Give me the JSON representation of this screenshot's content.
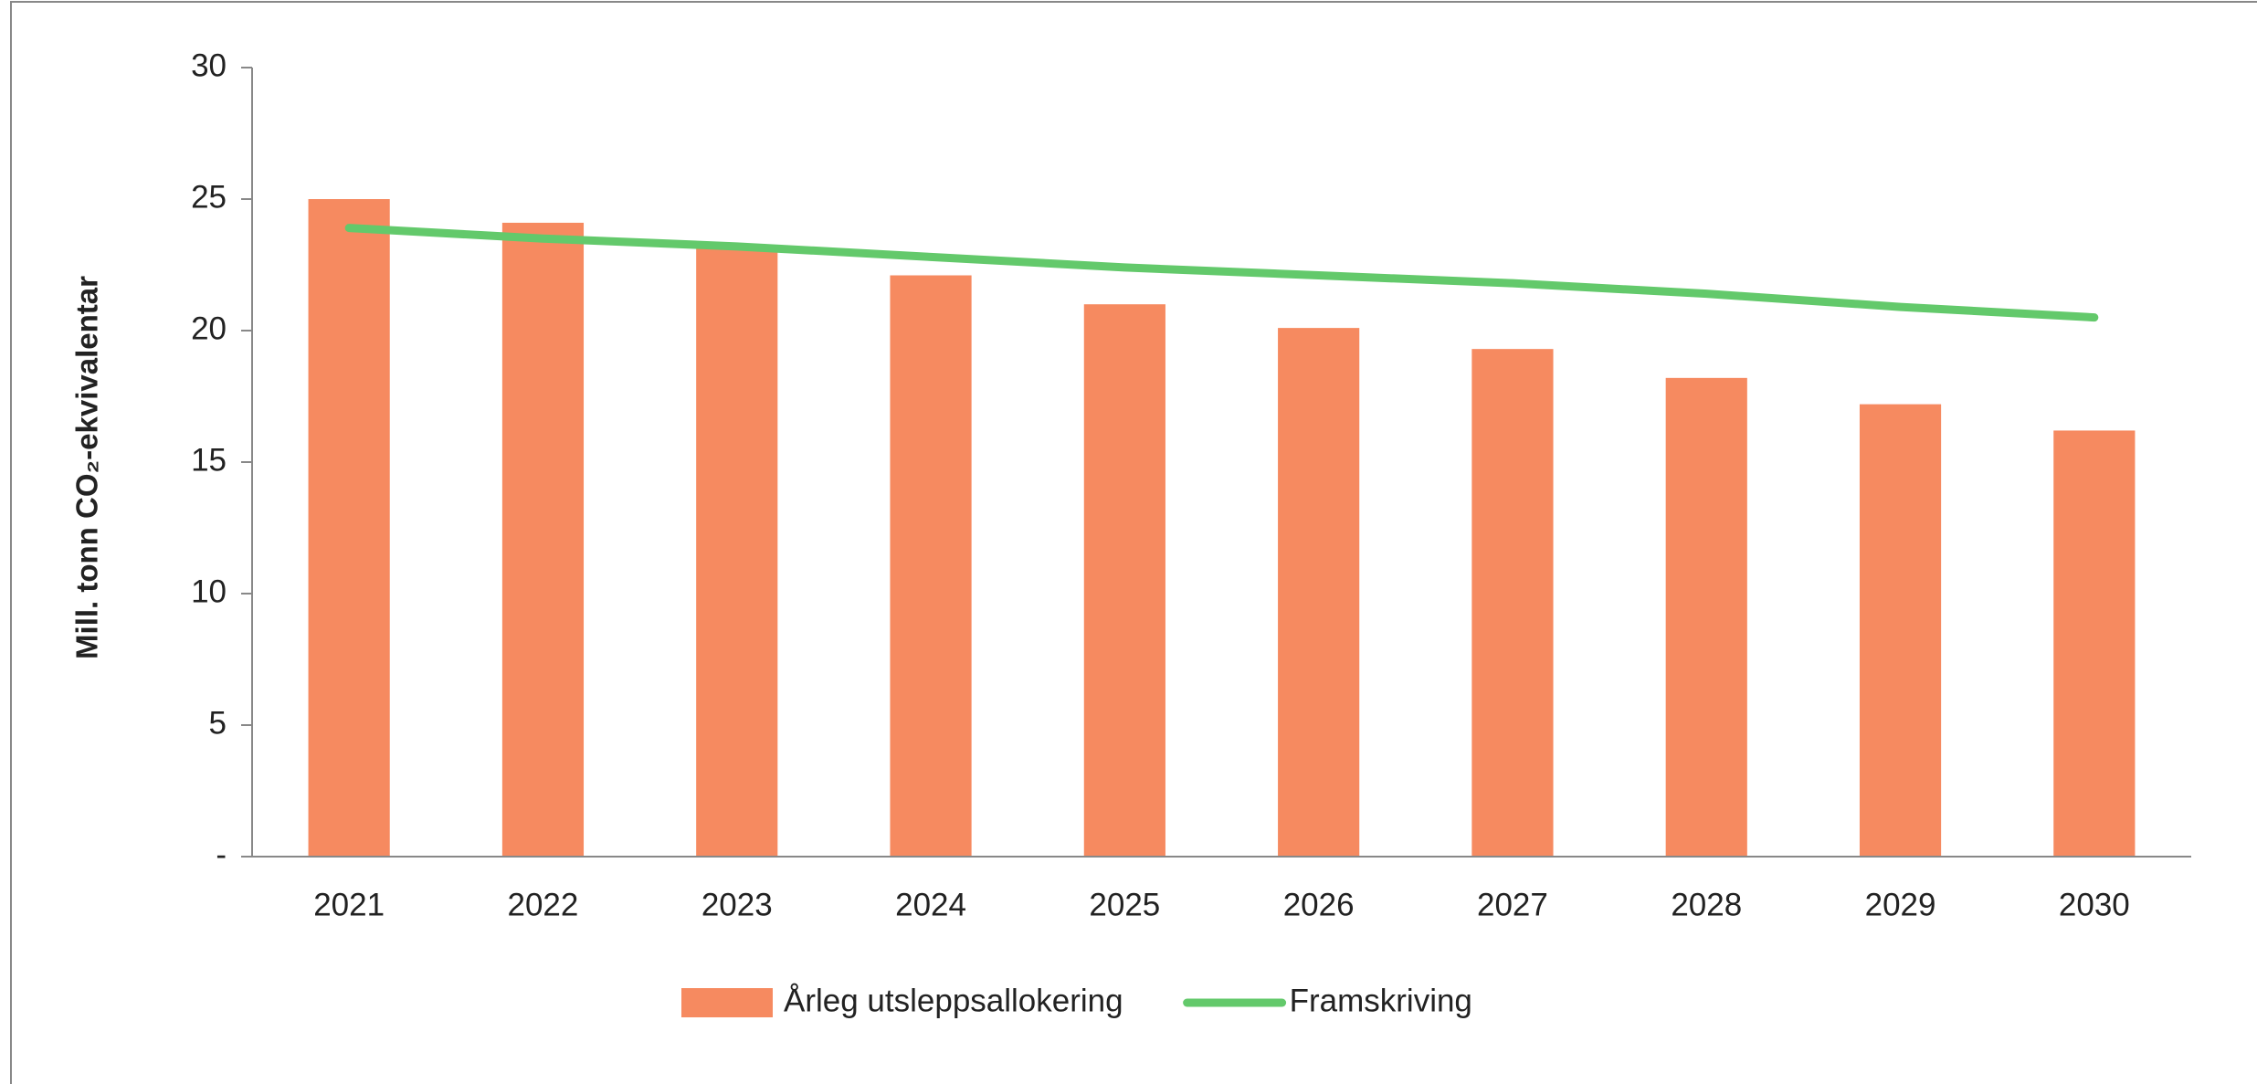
{
  "chart_data": {
    "type": "combo",
    "y_label": "Mill. tonn CO₂-ekvivalentar",
    "categories": [
      "2021",
      "2022",
      "2023",
      "2024",
      "2025",
      "2026",
      "2027",
      "2028",
      "2029",
      "2030"
    ],
    "series": [
      {
        "name": "Årleg utsleppsallokering",
        "type": "bar",
        "color": "#f68a60",
        "values": [
          25.0,
          24.1,
          23.2,
          22.1,
          21.0,
          20.1,
          19.3,
          18.2,
          17.2,
          16.2
        ]
      },
      {
        "name": "Framskriving",
        "type": "line",
        "color": "#63c96b",
        "values": [
          23.9,
          23.5,
          23.2,
          22.8,
          22.4,
          22.1,
          21.8,
          21.4,
          20.9,
          20.5
        ]
      }
    ],
    "ylim": [
      0,
      30
    ],
    "yticks": [
      {
        "value": 0,
        "label": "-"
      },
      5,
      10,
      15,
      20,
      25,
      30
    ],
    "grid": false,
    "legend": "bottom"
  }
}
